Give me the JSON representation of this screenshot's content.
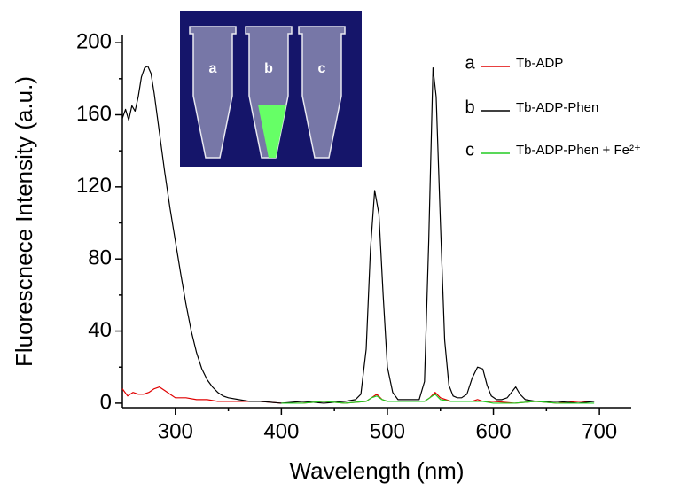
{
  "chart_data": {
    "type": "line",
    "xlabel": "Wavelength (nm)",
    "ylabel": "Fluorescnece Intensity (a.u.)",
    "xlim": [
      250,
      730
    ],
    "ylim": [
      -2.5,
      204
    ],
    "xticks": [
      300,
      400,
      500,
      600,
      700
    ],
    "yticks": [
      0,
      40,
      80,
      120,
      160,
      200
    ],
    "xminorticks": [
      350,
      450,
      550,
      650
    ],
    "yminorticks": [
      20,
      60,
      100,
      140,
      180
    ],
    "series": [
      {
        "name": "Tb-ADP",
        "label": "a",
        "color": "#e00000",
        "x": [
          250,
          255,
          260,
          265,
          270,
          275,
          280,
          285,
          290,
          295,
          300,
          310,
          320,
          330,
          340,
          350,
          360,
          380,
          400,
          420,
          440,
          460,
          480,
          485,
          490,
          495,
          500,
          520,
          535,
          540,
          545,
          550,
          560,
          580,
          585,
          590,
          600,
          620,
          640,
          660,
          680,
          695
        ],
        "values": [
          8,
          4,
          6,
          5,
          5,
          6,
          8,
          9,
          7,
          5,
          3,
          3,
          2,
          2,
          1,
          1,
          1,
          1,
          0,
          0,
          1,
          0,
          1,
          3,
          5,
          2,
          1,
          1,
          1,
          3,
          6,
          3,
          1,
          1,
          2,
          1,
          1,
          0,
          1,
          0,
          1,
          1
        ]
      },
      {
        "name": "Tb-ADP-Phen",
        "label": "b",
        "color": "#000000",
        "x": [
          250,
          253,
          256,
          259,
          262,
          265,
          268,
          271,
          274,
          277,
          280,
          285,
          290,
          295,
          300,
          305,
          310,
          315,
          320,
          325,
          330,
          335,
          340,
          345,
          350,
          360,
          370,
          380,
          400,
          420,
          440,
          460,
          470,
          475,
          480,
          484,
          488,
          492,
          496,
          500,
          505,
          510,
          520,
          530,
          535,
          539,
          543,
          546,
          550,
          554,
          558,
          562,
          566,
          570,
          575,
          580,
          585,
          590,
          594,
          598,
          603,
          608,
          613,
          617,
          621,
          625,
          630,
          640,
          660,
          680,
          695
        ],
        "values": [
          158,
          163,
          157,
          165,
          162,
          170,
          181,
          186,
          187,
          183,
          172,
          150,
          128,
          108,
          90,
          72,
          55,
          40,
          28,
          19,
          13,
          9,
          6,
          4,
          3,
          2,
          1,
          1,
          0,
          1,
          0,
          1,
          2,
          5,
          30,
          85,
          118,
          105,
          60,
          20,
          6,
          2,
          2,
          2,
          12,
          90,
          186,
          170,
          100,
          35,
          10,
          4,
          3,
          3,
          5,
          14,
          20,
          19,
          10,
          4,
          2,
          2,
          3,
          6,
          9,
          5,
          2,
          1,
          1,
          0,
          1
        ]
      },
      {
        "name": "Tb-ADP-Phen + Fe²⁺",
        "label": "c",
        "color": "#22cc22",
        "x": [
          400,
          420,
          440,
          460,
          480,
          485,
          490,
          495,
          500,
          520,
          535,
          540,
          545,
          550,
          560,
          580,
          585,
          590,
          600,
          620,
          640,
          660,
          680,
          695
        ],
        "values": [
          0,
          0,
          1,
          0,
          1,
          3,
          4,
          2,
          1,
          1,
          1,
          3,
          5,
          2,
          1,
          1,
          1,
          1,
          0,
          0,
          1,
          0,
          0,
          0
        ]
      }
    ]
  }
}
